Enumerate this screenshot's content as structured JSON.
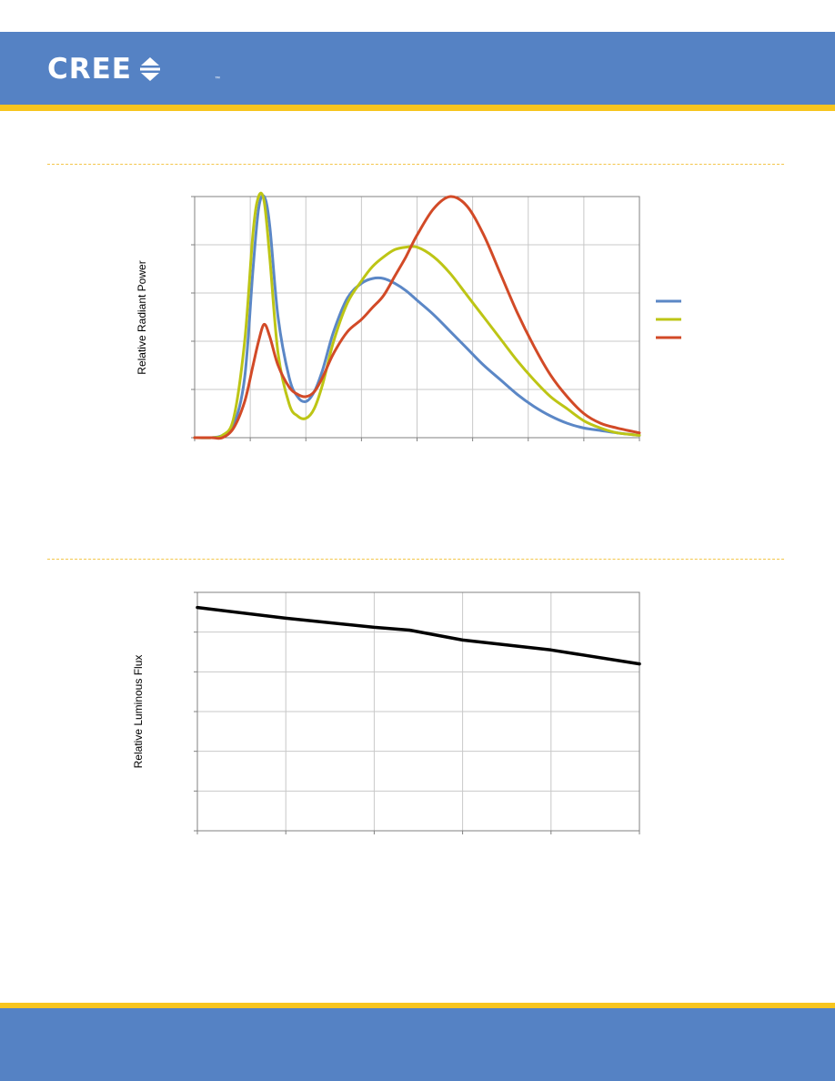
{
  "brand": {
    "name": "CREE",
    "trademark": "™"
  },
  "colors": {
    "header_blue": "#5582c4",
    "accent_yellow": "#f7c51f",
    "series_blue": "#5b87c6",
    "series_yellow": "#bdc515",
    "series_red": "#d24a27",
    "flux_line": "#000000"
  },
  "chart_data": [
    {
      "type": "line",
      "ylabel": "Relative Radiant Power",
      "xlabel": "",
      "x_ticks": 8,
      "y_ticks": 5,
      "xlim": [
        0,
        8
      ],
      "ylim": [
        0,
        100
      ],
      "grid": true,
      "legend": "right",
      "series": [
        {
          "color": "#5b87c6",
          "x": [
            0,
            0.3,
            0.5,
            0.7,
            0.9,
            1.05,
            1.15,
            1.25,
            1.35,
            1.5,
            1.7,
            1.85,
            2.0,
            2.15,
            2.3,
            2.5,
            2.75,
            3.0,
            3.2,
            3.4,
            3.6,
            3.8,
            4.0,
            4.3,
            4.6,
            4.9,
            5.2,
            5.5,
            5.8,
            6.1,
            6.4,
            6.7,
            7.0,
            7.3,
            7.6,
            8.0
          ],
          "y": [
            0,
            0,
            1,
            5,
            25,
            70,
            95,
            100,
            88,
            50,
            25,
            17,
            15,
            19,
            28,
            44,
            58,
            64,
            66,
            66,
            64,
            61,
            57,
            51,
            44,
            37,
            30,
            24,
            18,
            13,
            9,
            6,
            4,
            3,
            2,
            1
          ]
        },
        {
          "color": "#bdc515",
          "x": [
            0,
            0.3,
            0.5,
            0.7,
            0.9,
            1.05,
            1.15,
            1.25,
            1.35,
            1.5,
            1.7,
            1.85,
            2.0,
            2.15,
            2.3,
            2.5,
            2.75,
            3.0,
            3.2,
            3.4,
            3.6,
            3.8,
            4.0,
            4.3,
            4.6,
            4.9,
            5.2,
            5.5,
            5.8,
            6.1,
            6.4,
            6.7,
            7.0,
            7.3,
            7.6,
            8.0
          ],
          "y": [
            0,
            0,
            1,
            8,
            40,
            85,
            100,
            98,
            75,
            35,
            14,
            9,
            8,
            12,
            22,
            40,
            56,
            65,
            71,
            75,
            78,
            79,
            79,
            75,
            68,
            59,
            50,
            41,
            32,
            24,
            17,
            12,
            7,
            4,
            2,
            1
          ]
        },
        {
          "color": "#d24a27",
          "x": [
            0,
            0.3,
            0.5,
            0.7,
            0.9,
            1.05,
            1.15,
            1.25,
            1.35,
            1.5,
            1.7,
            1.85,
            2.0,
            2.15,
            2.3,
            2.5,
            2.75,
            3.0,
            3.2,
            3.4,
            3.6,
            3.8,
            4.0,
            4.3,
            4.6,
            4.9,
            5.2,
            5.5,
            5.8,
            6.1,
            6.4,
            6.7,
            7.0,
            7.3,
            7.6,
            8.0
          ],
          "y": [
            0,
            0,
            0,
            4,
            15,
            30,
            40,
            47,
            42,
            30,
            21,
            18,
            17,
            19,
            25,
            35,
            44,
            49,
            54,
            59,
            67,
            75,
            84,
            95,
            100,
            96,
            84,
            68,
            52,
            38,
            26,
            17,
            10,
            6,
            4,
            2
          ]
        }
      ]
    },
    {
      "type": "line",
      "ylabel": "Relative Luminous Flux",
      "xlabel": "",
      "x_ticks": 5,
      "y_ticks": 6,
      "xlim": [
        0,
        5
      ],
      "ylim": [
        0,
        6
      ],
      "grid": true,
      "series": [
        {
          "color": "#000000",
          "x": [
            0,
            1,
            2,
            2.4,
            3,
            4,
            5
          ],
          "y": [
            5.62,
            5.35,
            5.12,
            5.05,
            4.8,
            4.55,
            4.2
          ]
        }
      ]
    }
  ]
}
